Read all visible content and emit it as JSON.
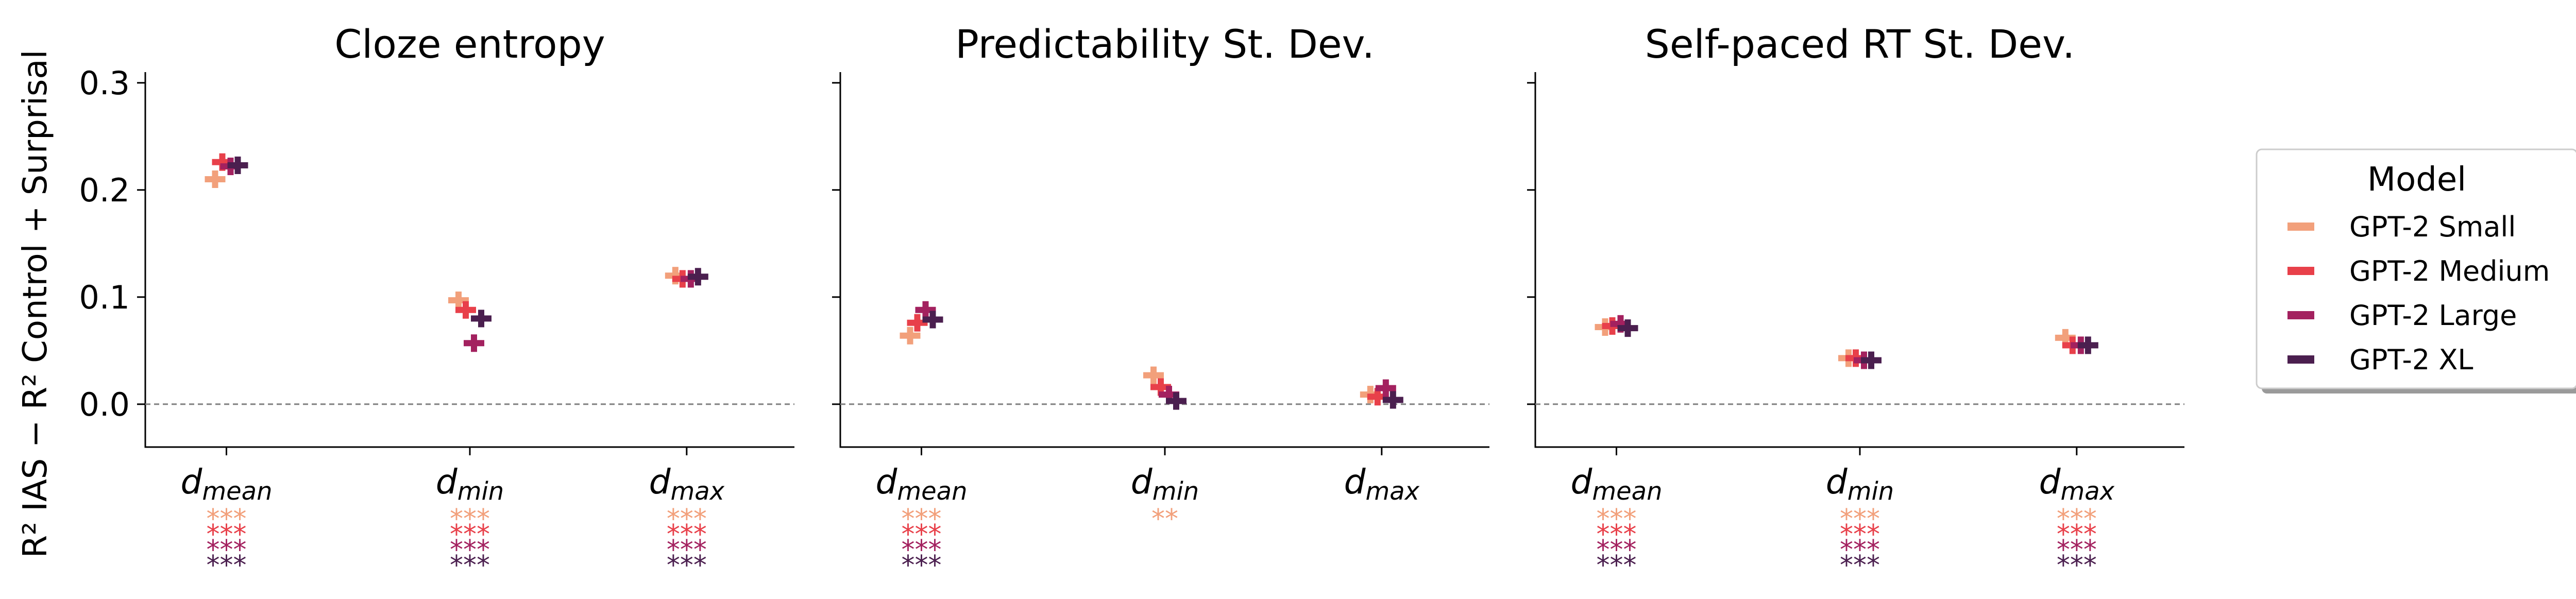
{
  "legend": {
    "title": "Model",
    "position": "right",
    "entries": [
      {
        "label": "GPT-2 Small",
        "color": "#F2A07B"
      },
      {
        "label": "GPT-2 Medium",
        "color": "#E8404A"
      },
      {
        "label": "GPT-2 Large",
        "color": "#A3215F"
      },
      {
        "label": "GPT-2 XL",
        "color": "#4B1F4F"
      }
    ]
  },
  "chart_data": {
    "type": "scatter",
    "ylabel": "R² IAS  −  R² Control + Surprisal",
    "ylim": [
      -0.04,
      0.31
    ],
    "yticks": [
      0.0,
      0.1,
      0.2,
      0.3
    ],
    "ytick_labels": [
      "0.0",
      "0.1",
      "0.2",
      "0.3"
    ],
    "zero_reference_line": true,
    "grid": false,
    "categories": [
      {
        "base": "d",
        "sub": "mean"
      },
      {
        "base": "d",
        "sub": "min"
      },
      {
        "base": "d",
        "sub": "max"
      }
    ],
    "series_names": [
      "GPT-2 Small",
      "GPT-2 Medium",
      "GPT-2 Large",
      "GPT-2 XL"
    ],
    "panels": [
      {
        "title": "Cloze entropy",
        "values": [
          [
            0.21,
            0.226,
            0.222,
            0.223
          ],
          [
            0.097,
            0.088,
            0.057,
            0.08
          ],
          [
            0.12,
            0.117,
            0.117,
            0.119
          ]
        ],
        "significance": [
          [
            "***",
            "***",
            "***",
            "***"
          ],
          [
            "***",
            "***",
            "***",
            "***"
          ],
          [
            "***",
            "***",
            "***",
            "***"
          ]
        ]
      },
      {
        "title": "Predictability St. Dev.",
        "values": [
          [
            0.064,
            0.076,
            0.088,
            0.079
          ],
          [
            0.027,
            0.016,
            0.009,
            0.003
          ],
          [
            0.009,
            0.007,
            0.015,
            0.004
          ]
        ],
        "significance": [
          [
            "***",
            "***",
            "***",
            "***"
          ],
          [
            "**",
            "",
            "",
            ""
          ],
          [
            "",
            "",
            "",
            ""
          ]
        ]
      },
      {
        "title": "Self-paced RT St. Dev.",
        "values": [
          [
            0.072,
            0.073,
            0.075,
            0.071
          ],
          [
            0.043,
            0.043,
            0.041,
            0.041
          ],
          [
            0.062,
            0.055,
            0.055,
            0.055
          ]
        ],
        "significance": [
          [
            "***",
            "***",
            "***",
            "***"
          ],
          [
            "***",
            "***",
            "***",
            "***"
          ],
          [
            "***",
            "***",
            "***",
            "***"
          ]
        ]
      }
    ]
  }
}
